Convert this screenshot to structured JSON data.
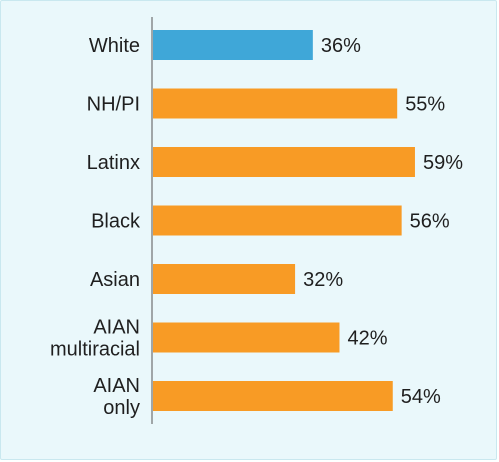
{
  "chart_data": {
    "type": "bar",
    "orientation": "horizontal",
    "categories": [
      [
        "White"
      ],
      [
        "NH/PI"
      ],
      [
        "Latinx"
      ],
      [
        "Black"
      ],
      [
        "Asian"
      ],
      [
        "AIAN",
        "multiracial"
      ],
      [
        "AIAN",
        "only"
      ]
    ],
    "values": [
      36,
      55,
      59,
      56,
      32,
      42,
      54
    ],
    "value_labels": [
      "36%",
      "55%",
      "59%",
      "56%",
      "32%",
      "42%",
      "54%"
    ],
    "highlight_index": 0,
    "xlim": [
      0,
      100
    ],
    "colors": {
      "highlight": "#3fa7d8",
      "default": "#f89b25",
      "axis": "#555555",
      "background": "#eaf8fb"
    },
    "grid": false,
    "legend": "none"
  }
}
